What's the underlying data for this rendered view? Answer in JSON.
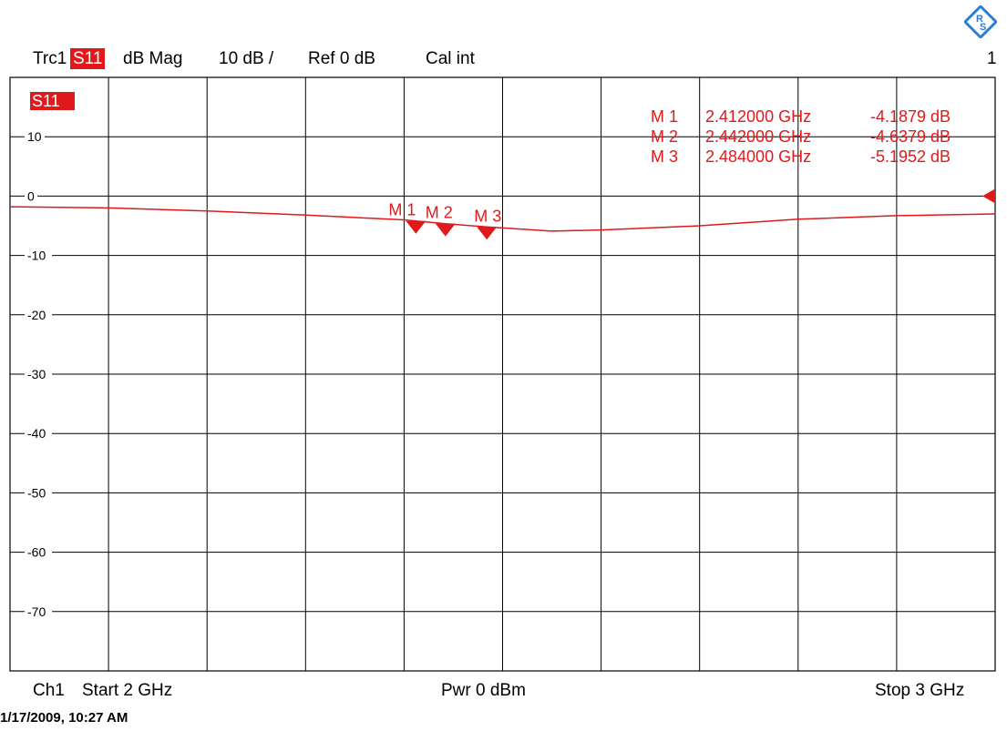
{
  "header": {
    "trace": "Trc1",
    "param": "S11",
    "format": "dB Mag",
    "scale": "10 dB /",
    "ref": "Ref 0 dB",
    "cal": "Cal int",
    "channel_num": "1"
  },
  "trace_label": "S11",
  "footer": {
    "channel": "Ch1",
    "start": "Start  2 GHz",
    "power": "Pwr  0 dBm",
    "stop": "Stop  3 GHz"
  },
  "timestamp": "1/17/2009, 10:27 AM",
  "colors": {
    "trace": "#e01a1a",
    "grid": "#000000",
    "logo": "#2a7fd4"
  },
  "chart_data": {
    "type": "line",
    "xlim": [
      2.0,
      3.0
    ],
    "ylim": [
      -80,
      20
    ],
    "ytick_values": [
      10,
      0,
      -10,
      -20,
      -30,
      -40,
      -50,
      -60,
      -70
    ],
    "ytick_labels": [
      "10",
      "0",
      "-10",
      "-20",
      "-30",
      "-40",
      "-50",
      "-60",
      "-70"
    ],
    "series": [
      {
        "x": [
          2.0,
          2.1,
          2.2,
          2.3,
          2.4,
          2.412,
          2.442,
          2.484,
          2.55,
          2.6,
          2.7,
          2.8,
          2.9,
          3.0
        ],
        "y": [
          -1.8,
          -2.0,
          -2.5,
          -3.2,
          -4.0,
          -4.19,
          -4.64,
          -5.2,
          -5.9,
          -5.7,
          -5.0,
          -3.9,
          -3.3,
          -3.0
        ]
      }
    ],
    "markers": [
      {
        "name": "M 1",
        "freq": "2.412000 GHz",
        "value": "-4.1879 dB",
        "x": 2.412,
        "y": -4.1879
      },
      {
        "name": "M 2",
        "freq": "2.442000 GHz",
        "value": "-4.6379 dB",
        "x": 2.442,
        "y": -4.6379
      },
      {
        "name": "M 3",
        "freq": "2.484000 GHz",
        "value": "-5.1952 dB",
        "x": 2.484,
        "y": -5.1952
      }
    ]
  }
}
